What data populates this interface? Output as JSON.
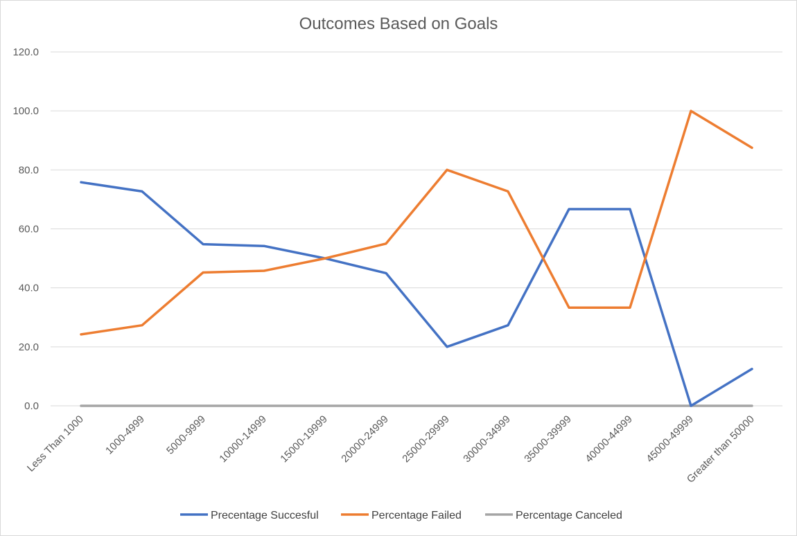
{
  "chart_data": {
    "type": "line",
    "title": "Outcomes Based on Goals",
    "xlabel": "",
    "ylabel": "",
    "categories": [
      "Less Than 1000",
      "1000-4999",
      "5000-9999",
      "10000-14999",
      "15000-19999",
      "20000-24999",
      "25000-29999",
      "30000-34999",
      "35000-39999",
      "40000-44999",
      "45000-49999",
      "Greater than 50000"
    ],
    "ylim": [
      0,
      120
    ],
    "yticks": [
      "0.0",
      "20.0",
      "40.0",
      "60.0",
      "80.0",
      "100.0",
      "120.0"
    ],
    "grid": "horizontal",
    "legend_position": "bottom",
    "series": [
      {
        "name": "Precentage Succesful",
        "color": "#4472C4",
        "values": [
          75.8,
          72.7,
          54.8,
          54.2,
          50.0,
          45.0,
          20.0,
          27.3,
          66.7,
          66.7,
          0.0,
          12.5
        ]
      },
      {
        "name": "Percentage Failed",
        "color": "#ED7D31",
        "values": [
          24.2,
          27.3,
          45.2,
          45.8,
          50.0,
          55.0,
          80.0,
          72.7,
          33.3,
          33.3,
          100.0,
          87.5
        ]
      },
      {
        "name": "Percentage Canceled",
        "color": "#A5A5A5",
        "values": [
          0,
          0,
          0,
          0,
          0,
          0,
          0,
          0,
          0,
          0,
          0,
          0
        ]
      }
    ]
  }
}
